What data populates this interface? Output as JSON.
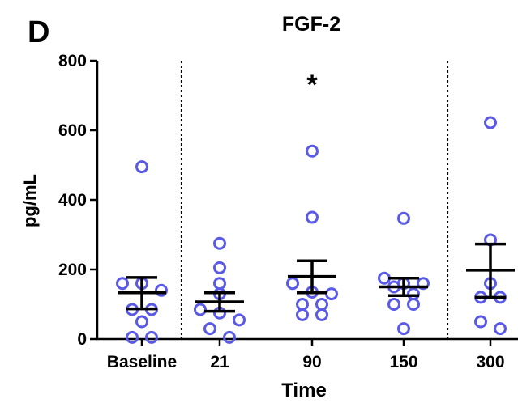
{
  "panel_label": "D",
  "chart_data": {
    "type": "scatter",
    "title": "FGF-2",
    "xlabel": "Time",
    "ylabel": "pg/mL",
    "ylim": [
      0,
      800
    ],
    "yticks": [
      0,
      200,
      400,
      600,
      800
    ],
    "categories": [
      "Baseline",
      "21",
      "90",
      "150",
      "300"
    ],
    "grid": false,
    "marker_color": "#5a5ae6",
    "divider_after_categories": [
      "Baseline",
      "150"
    ],
    "significance": [
      {
        "category": "90",
        "label": "*"
      }
    ],
    "groups": [
      {
        "category": "Baseline",
        "points": [
          495,
          160,
          160,
          140,
          85,
          85,
          50,
          5,
          5
        ],
        "mean": 133,
        "error_upper": 177,
        "error_lower": 87
      },
      {
        "category": "21",
        "points": [
          275,
          205,
          160,
          130,
          85,
          75,
          55,
          30,
          5
        ],
        "mean": 107,
        "error_upper": 133,
        "error_lower": 80
      },
      {
        "category": "90",
        "points": [
          540,
          350,
          160,
          135,
          130,
          100,
          100,
          70,
          70
        ],
        "mean": 180,
        "error_upper": 225,
        "error_lower": 133
      },
      {
        "category": "150",
        "points": [
          347,
          175,
          160,
          160,
          150,
          130,
          100,
          100,
          30
        ],
        "mean": 150,
        "error_upper": 175,
        "error_lower": 125
      },
      {
        "category": "300",
        "points": [
          622,
          285,
          160,
          120,
          120,
          50,
          30
        ],
        "mean": 198,
        "error_upper": 273,
        "error_lower": 120
      }
    ]
  }
}
